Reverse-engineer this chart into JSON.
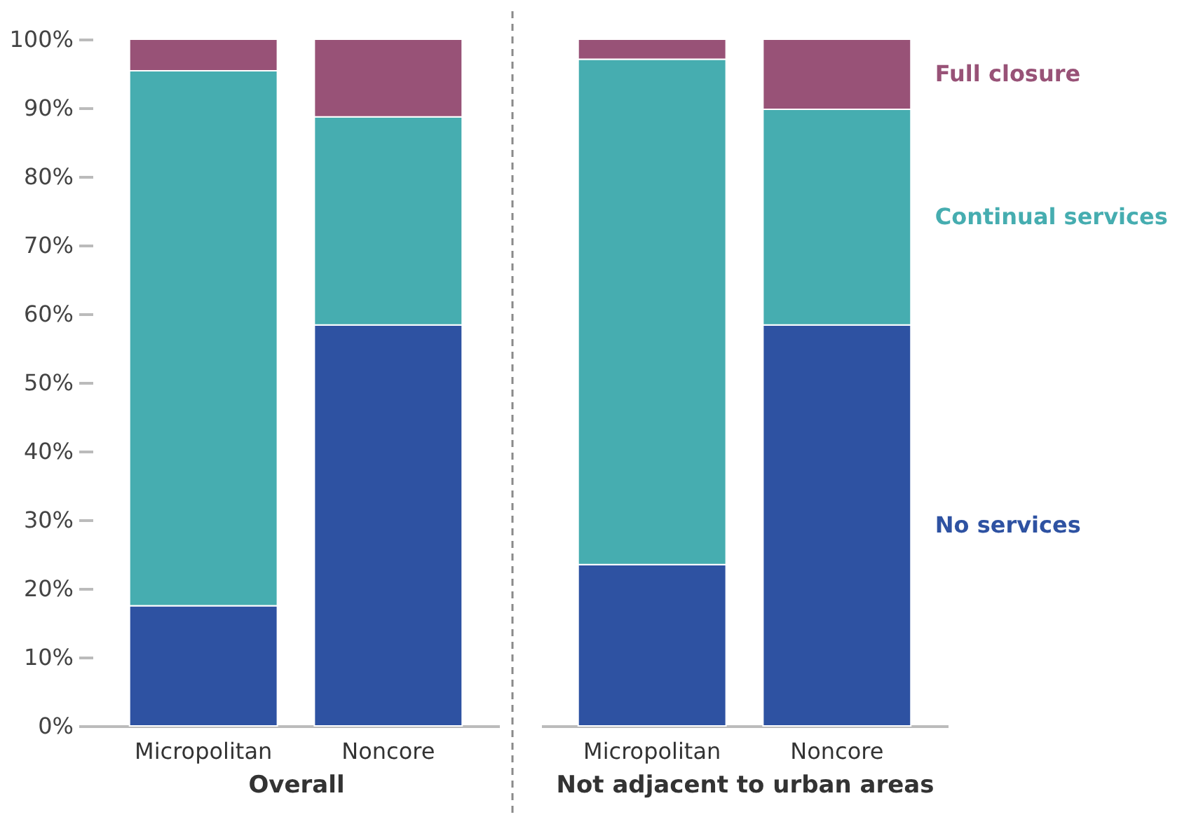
{
  "chart_data": [
    {
      "type": "bar",
      "stacked": true,
      "xlabel": "Overall",
      "categories": [
        "Micropolitan",
        "Noncore"
      ],
      "series": [
        {
          "color": "#2e52a2",
          "values": [
            17.5,
            58.4
          ]
        },
        {
          "color": "#46adb0",
          "values": [
            77.9,
            30.3
          ]
        },
        {
          "color": "#985277",
          "values": [
            4.6,
            11.3
          ]
        }
      ],
      "ylim": [
        0,
        100
      ],
      "yticks": [
        {
          "value": 0,
          "label": "0%"
        },
        {
          "value": 10,
          "label": "10%"
        },
        {
          "value": 20,
          "label": "20%"
        },
        {
          "value": 30,
          "label": "30%"
        },
        {
          "value": 40,
          "label": "40%"
        },
        {
          "value": 50,
          "label": "50%"
        },
        {
          "value": 60,
          "label": "60%"
        },
        {
          "value": 70,
          "label": "70%"
        },
        {
          "value": 80,
          "label": "80%"
        },
        {
          "value": 90,
          "label": "90%"
        },
        {
          "value": 100,
          "label": "100%"
        }
      ]
    },
    {
      "type": "bar",
      "stacked": true,
      "xlabel": "Not adjacent to urban areas",
      "categories": [
        "Micropolitan",
        "Noncore"
      ],
      "legend": "right",
      "tick_labels": "x",
      "series": [
        {
          "name": "No services",
          "color": "#2e52a2",
          "values": [
            23.5,
            58.4
          ]
        },
        {
          "name": "Continual services",
          "color": "#46adb0",
          "values": [
            73.6,
            31.4
          ]
        },
        {
          "name": "Full closure",
          "color": "#985277",
          "values": [
            2.9,
            10.2
          ]
        }
      ],
      "ylim": [
        0,
        100
      ]
    }
  ]
}
